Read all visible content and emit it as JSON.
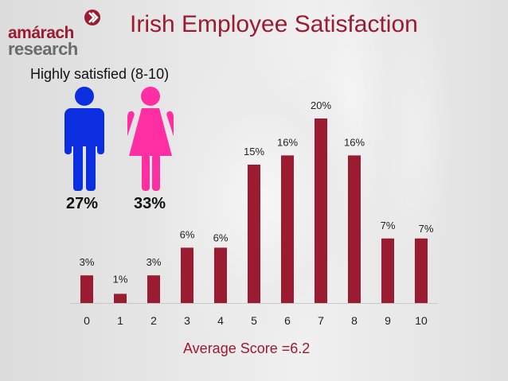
{
  "brand": {
    "logo_line1": "amárach",
    "logo_line2": "research",
    "accent_color": "#9b1b30"
  },
  "title": "Irish Employee Satisfaction",
  "subtitle": "Highly satisfied (8-10)",
  "gender_stats": {
    "male": {
      "icon": "male-figure-icon",
      "value": "27%",
      "color": "#0a2ee0"
    },
    "female": {
      "icon": "female-figure-icon",
      "value": "33%",
      "color": "#ff2fa3"
    }
  },
  "footer": {
    "average": "Average Score =6.2"
  },
  "chart_data": {
    "type": "bar",
    "categories": [
      "0",
      "1",
      "2",
      "3",
      "4",
      "5",
      "6",
      "7",
      "8",
      "9",
      "10"
    ],
    "values": [
      3,
      1,
      3,
      6,
      6,
      15,
      16,
      20,
      16,
      7,
      7
    ],
    "data_labels": [
      "3%",
      "1%",
      "3%",
      "6%",
      "6%",
      "15%",
      "16%",
      "20%",
      "16%",
      "7%",
      "7%"
    ],
    "title": "Irish Employee Satisfaction",
    "xlabel": "",
    "ylabel": "",
    "ylim": [
      0,
      20
    ],
    "grid": false,
    "bar_color": "#9b1b30"
  }
}
